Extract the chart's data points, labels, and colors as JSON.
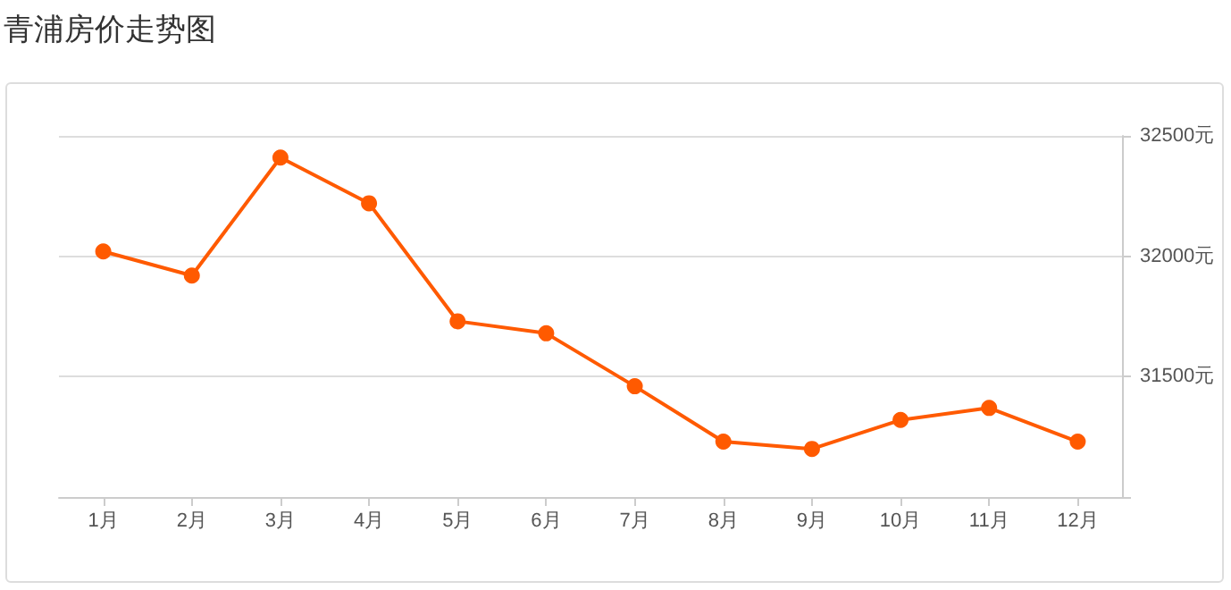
{
  "chart_data": {
    "type": "line",
    "title": "青浦房价走势图",
    "categories": [
      "1月",
      "2月",
      "3月",
      "4月",
      "5月",
      "6月",
      "7月",
      "8月",
      "9月",
      "10月",
      "11月",
      "12月"
    ],
    "series": [
      {
        "color": "#ff5a00",
        "values": [
          32020,
          31920,
          32410,
          32220,
          31730,
          31680,
          31460,
          31230,
          31200,
          31320,
          31370,
          31230
        ]
      }
    ],
    "ylim": [
      31000,
      32500
    ],
    "yticks": [
      {
        "value": 31000,
        "label": null
      },
      {
        "value": 31500,
        "label": "31500元"
      },
      {
        "value": 32000,
        "label": "32000元"
      },
      {
        "value": 32500,
        "label": "32500元"
      }
    ],
    "grid": "y",
    "marker": "circle",
    "line_style": "solid"
  }
}
